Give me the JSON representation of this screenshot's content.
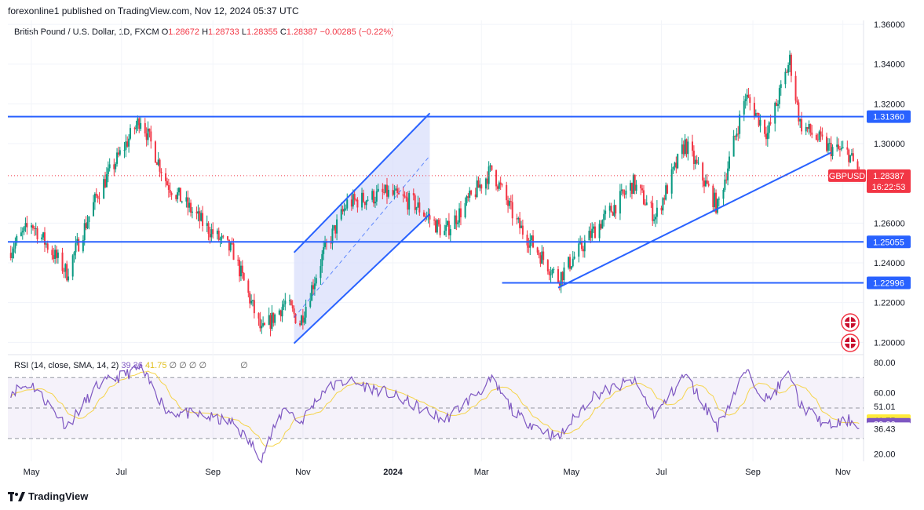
{
  "header": {
    "published": "forexonline1 published on TradingView.com, Nov 12, 2024 05:37 UTC"
  },
  "legend": {
    "symbol": "British Pound / U.S. Dollar, 1D, FXCM",
    "o_label": "O",
    "o": "1.28672",
    "h_label": "H",
    "h": "1.28733",
    "l_label": "L",
    "l": "1.28355",
    "c_label": "C",
    "c": "1.28387",
    "change": "−0.00285 (−0.22%)"
  },
  "rsi_legend": {
    "label": "RSI (14, close, SMA, 14, 2)",
    "rsi": "39.36",
    "sma": "41.75",
    "extras": "∅ ∅ ∅ ∅",
    "extra2": "∅"
  },
  "footer": {
    "brand": "TradingView"
  },
  "chart_data": {
    "type": "candlestick",
    "symbol": "GBPUSD",
    "price_axis": {
      "ticks": [
        "1.36000",
        "1.34000",
        "1.32000",
        "1.30000",
        "1.28000",
        "1.26000",
        "1.24000",
        "1.22000",
        "1.20000"
      ],
      "range": [
        1.195,
        1.362
      ]
    },
    "x_ticks": [
      "May",
      "Jul",
      "Sep",
      "Nov",
      "2024",
      "Mar",
      "May",
      "Jul",
      "Sep",
      "Nov"
    ],
    "x_range": [
      "2023-04-15",
      "2024-11-15"
    ],
    "price_labels": [
      {
        "text": "1.31360",
        "value": 1.3136,
        "color": "#2962ff"
      },
      {
        "text": "1.25055",
        "value": 1.25055,
        "color": "#2962ff"
      },
      {
        "text": "1.22996",
        "value": 1.22996,
        "color": "#2962ff"
      }
    ],
    "last_price": {
      "symbol": "GBPUSD",
      "price": "1.28387",
      "countdown": "16:22:53",
      "value": 1.28387,
      "color": "#f23645"
    },
    "horizontal_lines": [
      {
        "value": 1.3136,
        "from": "2023-04-15",
        "to": "2024-11-15"
      },
      {
        "value": 1.25055,
        "from": "2023-04-15",
        "to": "2024-11-15"
      },
      {
        "value": 1.22996,
        "from": "2024-03-15",
        "to": "2024-11-15"
      }
    ],
    "trendline": {
      "from": {
        "date": "2024-04-22",
        "value": 1.2275
      },
      "to": {
        "date": "2024-10-24",
        "value": 1.2955
      }
    },
    "channel": [
      {
        "date": "2023-10-26",
        "value": 1.2452
      },
      {
        "date": "2024-01-26",
        "value": 1.3153
      },
      {
        "date": "2024-01-26",
        "value": 1.2645
      },
      {
        "date": "2023-10-26",
        "value": 1.1995
      }
    ],
    "anchors": [
      {
        "date": "2023-04-15",
        "value": 1.245
      },
      {
        "date": "2023-05-01",
        "value": 1.26
      },
      {
        "date": "2023-05-25",
        "value": 1.235
      },
      {
        "date": "2023-06-15",
        "value": 1.275
      },
      {
        "date": "2023-07-14",
        "value": 1.313
      },
      {
        "date": "2023-08-01",
        "value": 1.28
      },
      {
        "date": "2023-08-25",
        "value": 1.26
      },
      {
        "date": "2023-09-15",
        "value": 1.245
      },
      {
        "date": "2023-10-04",
        "value": 1.205
      },
      {
        "date": "2023-10-20",
        "value": 1.22
      },
      {
        "date": "2023-10-30",
        "value": 1.21
      },
      {
        "date": "2023-11-15",
        "value": 1.245
      },
      {
        "date": "2023-12-01",
        "value": 1.27
      },
      {
        "date": "2023-12-28",
        "value": 1.275
      },
      {
        "date": "2024-01-15",
        "value": 1.27
      },
      {
        "date": "2024-02-05",
        "value": 1.255
      },
      {
        "date": "2024-03-08",
        "value": 1.287
      },
      {
        "date": "2024-03-25",
        "value": 1.26
      },
      {
        "date": "2024-04-22",
        "value": 1.232
      },
      {
        "date": "2024-05-15",
        "value": 1.255
      },
      {
        "date": "2024-06-12",
        "value": 1.28
      },
      {
        "date": "2024-06-27",
        "value": 1.263
      },
      {
        "date": "2024-07-17",
        "value": 1.3
      },
      {
        "date": "2024-08-08",
        "value": 1.268
      },
      {
        "date": "2024-08-27",
        "value": 1.324
      },
      {
        "date": "2024-09-11",
        "value": 1.305
      },
      {
        "date": "2024-09-26",
        "value": 1.342
      },
      {
        "date": "2024-10-03",
        "value": 1.31
      },
      {
        "date": "2024-10-22",
        "value": 1.298
      },
      {
        "date": "2024-11-05",
        "value": 1.295
      },
      {
        "date": "2024-11-12",
        "value": 1.284
      }
    ],
    "rsi": {
      "axis_ticks": [
        "80.00",
        "60.00",
        "20.00"
      ],
      "range": [
        15,
        83
      ],
      "levels": [
        70,
        50,
        30
      ],
      "value_labels": [
        {
          "text": "51.01",
          "value": 51.01,
          "color": "#ffffff",
          "text_color": "#131722"
        },
        {
          "text": "41.75",
          "value": 41.75,
          "color": "#ffeb3b",
          "text_color": "#131722"
        },
        {
          "text": "39.36",
          "value": 39.36,
          "color": "#7e57c2",
          "text_color": "#ffffff"
        },
        {
          "text": "36.43",
          "value": 36.43,
          "color": "#ffffff",
          "text_color": "#131722"
        }
      ],
      "anchors": [
        {
          "date": "2023-04-15",
          "value": 60
        },
        {
          "date": "2023-05-01",
          "value": 66
        },
        {
          "date": "2023-05-25",
          "value": 38
        },
        {
          "date": "2023-06-15",
          "value": 65
        },
        {
          "date": "2023-07-14",
          "value": 76
        },
        {
          "date": "2023-08-01",
          "value": 48
        },
        {
          "date": "2023-08-25",
          "value": 45
        },
        {
          "date": "2023-09-15",
          "value": 40
        },
        {
          "date": "2023-10-04",
          "value": 18
        },
        {
          "date": "2023-10-20",
          "value": 52
        },
        {
          "date": "2023-10-30",
          "value": 40
        },
        {
          "date": "2023-11-15",
          "value": 62
        },
        {
          "date": "2023-12-01",
          "value": 68
        },
        {
          "date": "2023-12-28",
          "value": 60
        },
        {
          "date": "2024-01-15",
          "value": 52
        },
        {
          "date": "2024-02-05",
          "value": 42
        },
        {
          "date": "2024-03-08",
          "value": 68
        },
        {
          "date": "2024-03-25",
          "value": 45
        },
        {
          "date": "2024-04-22",
          "value": 30
        },
        {
          "date": "2024-05-15",
          "value": 58
        },
        {
          "date": "2024-06-12",
          "value": 68
        },
        {
          "date": "2024-06-27",
          "value": 45
        },
        {
          "date": "2024-07-17",
          "value": 72
        },
        {
          "date": "2024-08-08",
          "value": 38
        },
        {
          "date": "2024-08-27",
          "value": 74
        },
        {
          "date": "2024-09-11",
          "value": 55
        },
        {
          "date": "2024-09-26",
          "value": 73
        },
        {
          "date": "2024-10-03",
          "value": 52
        },
        {
          "date": "2024-10-22",
          "value": 38
        },
        {
          "date": "2024-11-05",
          "value": 42
        },
        {
          "date": "2024-11-12",
          "value": 39.36
        }
      ]
    },
    "colors": {
      "up": "#089981",
      "down": "#f23645",
      "line": "#2962ff",
      "rsi": "#7e57c2",
      "rsi_sma": "#f5d44a",
      "channel_fill": "#d7ddfb"
    }
  }
}
